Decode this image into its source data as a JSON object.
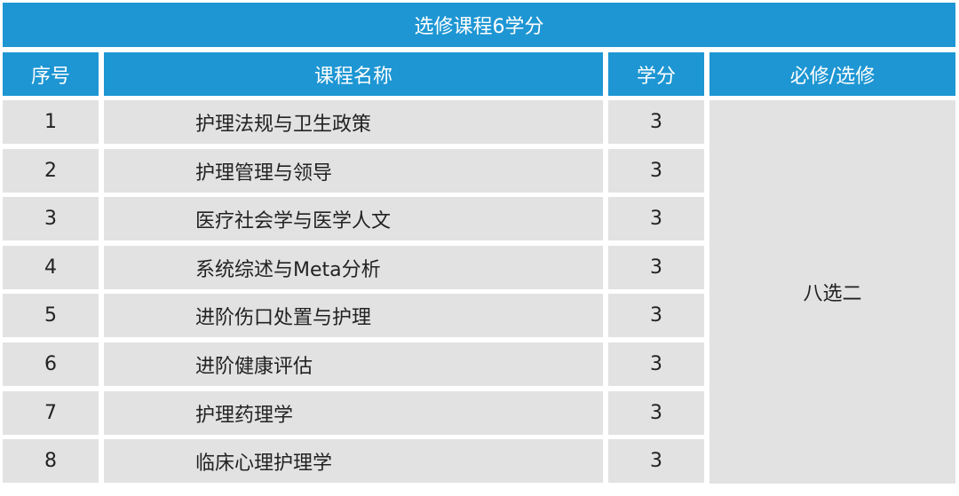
{
  "table": {
    "title": "选修课程6学分",
    "headers": {
      "index": "序号",
      "name": "课程名称",
      "credits": "学分",
      "type": "必修/选修"
    },
    "rows": [
      {
        "index": "1",
        "name": "护理法规与卫生政策",
        "credits": "3"
      },
      {
        "index": "2",
        "name": "护理管理与领导",
        "credits": "3"
      },
      {
        "index": "3",
        "name": "医疗社会学与医学人文",
        "credits": "3"
      },
      {
        "index": "4",
        "name": "系统综述与Meta分析",
        "credits": "3"
      },
      {
        "index": "5",
        "name": "进阶伤口处置与护理",
        "credits": "3"
      },
      {
        "index": "6",
        "name": "进阶健康评估",
        "credits": "3"
      },
      {
        "index": "7",
        "name": "护理药理学",
        "credits": "3"
      },
      {
        "index": "8",
        "name": "临床心理护理学",
        "credits": "3"
      }
    ],
    "type_value": "八选二",
    "colors": {
      "header_bg": "#1e96d3",
      "cell_bg": "#e2e2e2",
      "header_text": "#ffffff",
      "cell_text": "#222222"
    }
  }
}
